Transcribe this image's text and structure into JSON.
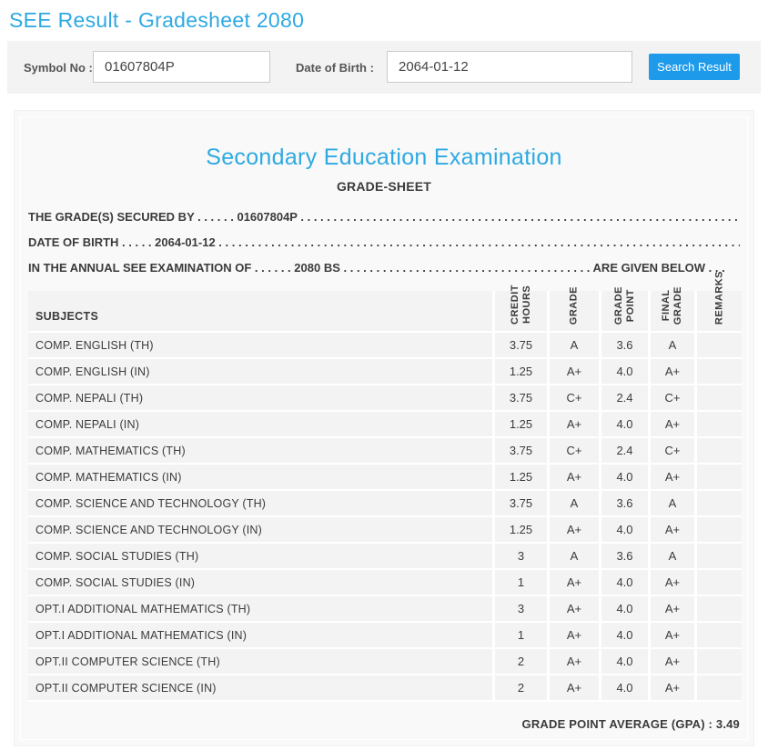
{
  "header": {
    "title": "SEE Result - Gradesheet 2080"
  },
  "search": {
    "symbol_label": "Symbol No :",
    "symbol_value": "01607804P",
    "dob_label": "Date of Birth :",
    "dob_value": "2064-01-12",
    "button_label": "Search Result"
  },
  "colors": {
    "accent_blue": "#2EA9E2",
    "button_blue": "#1D9BEA",
    "panel_bg": "#F9F9F9",
    "cell_bg": "#F3F3F3"
  },
  "gradesheet": {
    "title": "Secondary Education Examination",
    "subtitle": "GRADE-SHEET",
    "line1": {
      "pre": "THE GRADE(S) SECURED BY . . . . . .",
      "value": "01607804P",
      "post": ". . . . . . . . . . . . . . . . . . . . . . . . . . . . . . . . . . . . . . . . . . . . . . . . . . . . . . . . . . . . . . . . . . . . . . . . . . . . . . . ."
    },
    "line2": {
      "pre": "DATE OF BIRTH . . . . .",
      "value": "2064-01-12",
      "post": ". . . . . . . . . . . . . . . . . . . . . . . . . . . . . . . . . . . . . . . . . . . . . . . . . . . . . . . . . . . . . . . . . . . . . . . . . . . . . . . ."
    },
    "line3": {
      "pre": "IN THE ANNUAL SEE EXAMINATION OF . . . . . .",
      "value": "2080 BS",
      "dots": ". . . . . . . . . . . . . . . . . . . . . . . . . . . . . . . . . . . . . .",
      "tail": "ARE GIVEN BELOW . . ."
    },
    "gpa_label": "GRADE POINT AVERAGE (GPA) :",
    "gpa_value": "3.49"
  },
  "table": {
    "columns": {
      "subjects": "SUBJECTS",
      "credit_hours": "CREDIT\nHOURS",
      "grade": "GRADE",
      "grade_point": "GRADE\nPOINT",
      "final_grade": "FINAL\nGRADE",
      "remarks": "REMARKS"
    },
    "rows": [
      {
        "subject": "COMP. ENGLISH (TH)",
        "credit_hours": "3.75",
        "grade": "A",
        "grade_point": "3.6",
        "final_grade": "A",
        "remarks": ""
      },
      {
        "subject": "COMP. ENGLISH (IN)",
        "credit_hours": "1.25",
        "grade": "A+",
        "grade_point": "4.0",
        "final_grade": "A+",
        "remarks": ""
      },
      {
        "subject": "COMP. NEPALI (TH)",
        "credit_hours": "3.75",
        "grade": "C+",
        "grade_point": "2.4",
        "final_grade": "C+",
        "remarks": ""
      },
      {
        "subject": "COMP. NEPALI (IN)",
        "credit_hours": "1.25",
        "grade": "A+",
        "grade_point": "4.0",
        "final_grade": "A+",
        "remarks": ""
      },
      {
        "subject": "COMP. MATHEMATICS (TH)",
        "credit_hours": "3.75",
        "grade": "C+",
        "grade_point": "2.4",
        "final_grade": "C+",
        "remarks": ""
      },
      {
        "subject": "COMP. MATHEMATICS (IN)",
        "credit_hours": "1.25",
        "grade": "A+",
        "grade_point": "4.0",
        "final_grade": "A+",
        "remarks": ""
      },
      {
        "subject": "COMP. SCIENCE AND TECHNOLOGY (TH)",
        "credit_hours": "3.75",
        "grade": "A",
        "grade_point": "3.6",
        "final_grade": "A",
        "remarks": ""
      },
      {
        "subject": "COMP. SCIENCE AND TECHNOLOGY (IN)",
        "credit_hours": "1.25",
        "grade": "A+",
        "grade_point": "4.0",
        "final_grade": "A+",
        "remarks": ""
      },
      {
        "subject": "COMP. SOCIAL STUDIES (TH)",
        "credit_hours": "3",
        "grade": "A",
        "grade_point": "3.6",
        "final_grade": "A",
        "remarks": ""
      },
      {
        "subject": "COMP. SOCIAL STUDIES (IN)",
        "credit_hours": "1",
        "grade": "A+",
        "grade_point": "4.0",
        "final_grade": "A+",
        "remarks": ""
      },
      {
        "subject": "OPT.I ADDITIONAL MATHEMATICS (TH)",
        "credit_hours": "3",
        "grade": "A+",
        "grade_point": "4.0",
        "final_grade": "A+",
        "remarks": ""
      },
      {
        "subject": "OPT.I ADDITIONAL MATHEMATICS (IN)",
        "credit_hours": "1",
        "grade": "A+",
        "grade_point": "4.0",
        "final_grade": "A+",
        "remarks": ""
      },
      {
        "subject": "OPT.II COMPUTER SCIENCE (TH)",
        "credit_hours": "2",
        "grade": "A+",
        "grade_point": "4.0",
        "final_grade": "A+",
        "remarks": ""
      },
      {
        "subject": "OPT.II COMPUTER SCIENCE (IN)",
        "credit_hours": "2",
        "grade": "A+",
        "grade_point": "4.0",
        "final_grade": "A+",
        "remarks": ""
      }
    ]
  }
}
